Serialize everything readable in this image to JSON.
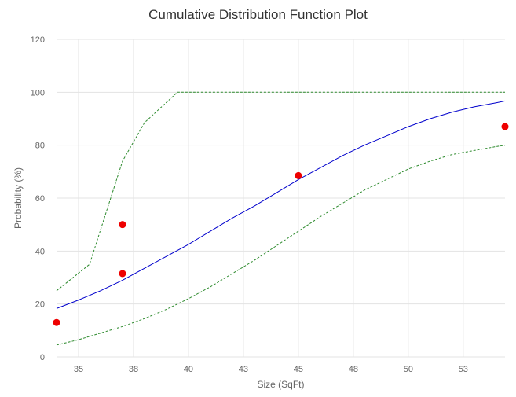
{
  "chart_data": {
    "type": "line",
    "title": "Cumulative Distribution Function Plot",
    "xlabel": "Size (SqFt)",
    "ylabel": "Probability (%)",
    "xlim": [
      34,
      54.4
    ],
    "ylim": [
      0,
      120
    ],
    "x_ticks": [
      35,
      37.5,
      40,
      42.5,
      45,
      47.5,
      50,
      52.5
    ],
    "x_tick_labels": [
      "35",
      "38",
      "40",
      "43",
      "45",
      "48",
      "50",
      "53"
    ],
    "y_ticks": [
      0,
      20,
      40,
      60,
      80,
      100,
      120
    ],
    "grid": true,
    "series": [
      {
        "kind": "line",
        "style": "solid",
        "color": "#0000cc",
        "points": [
          [
            34,
            18.3
          ],
          [
            35,
            21.5
          ],
          [
            36,
            25
          ],
          [
            37,
            29
          ],
          [
            38,
            33.5
          ],
          [
            39,
            38
          ],
          [
            40,
            42.5
          ],
          [
            41,
            47.5
          ],
          [
            42,
            52.5
          ],
          [
            43,
            57
          ],
          [
            44,
            62
          ],
          [
            45,
            67
          ],
          [
            46,
            71.5
          ],
          [
            47,
            76
          ],
          [
            48,
            80
          ],
          [
            49,
            83.5
          ],
          [
            50,
            87
          ],
          [
            51,
            90
          ],
          [
            52,
            92.5
          ],
          [
            53,
            94.5
          ],
          [
            54,
            96
          ],
          [
            54.4,
            96.7
          ]
        ]
      },
      {
        "kind": "line",
        "style": "dashed",
        "color": "#2e8b2e",
        "points": [
          [
            34,
            25
          ],
          [
            35.5,
            35
          ],
          [
            37,
            74
          ],
          [
            38,
            88.5
          ],
          [
            39.5,
            100
          ],
          [
            54.4,
            100
          ]
        ]
      },
      {
        "kind": "line",
        "style": "dashed",
        "color": "#2e8b2e",
        "points": [
          [
            34,
            4.5
          ],
          [
            35,
            6.5
          ],
          [
            36,
            9
          ],
          [
            37,
            11.5
          ],
          [
            38,
            14.5
          ],
          [
            39,
            18
          ],
          [
            40,
            22
          ],
          [
            41,
            26.5
          ],
          [
            42,
            31.5
          ],
          [
            43,
            36.5
          ],
          [
            44,
            42
          ],
          [
            45,
            47.5
          ],
          [
            46,
            53
          ],
          [
            47,
            58
          ],
          [
            48,
            63
          ],
          [
            49,
            67
          ],
          [
            50,
            71
          ],
          [
            51,
            74
          ],
          [
            52,
            76.5
          ],
          [
            53,
            78
          ],
          [
            54,
            79.5
          ],
          [
            54.4,
            80
          ]
        ]
      },
      {
        "kind": "scatter",
        "color": "#ee0000",
        "points": [
          [
            34,
            13
          ],
          [
            37,
            31.5
          ],
          [
            37,
            50
          ],
          [
            45,
            68.5
          ],
          [
            54.4,
            87
          ]
        ]
      }
    ]
  }
}
